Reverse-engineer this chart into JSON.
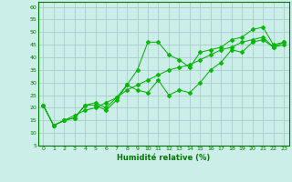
{
  "xlabel": "Humidité relative (%)",
  "background_color": "#cceee8",
  "grid_color": "#aacccc",
  "line_color": "#00aa00",
  "marker_color": "#00bb00",
  "xlim": [
    -0.5,
    23.5
  ],
  "ylim": [
    5,
    62
  ],
  "yticks": [
    5,
    10,
    15,
    20,
    25,
    30,
    35,
    40,
    45,
    50,
    55,
    60
  ],
  "xticks": [
    0,
    1,
    2,
    3,
    4,
    5,
    6,
    7,
    8,
    9,
    10,
    11,
    12,
    13,
    14,
    15,
    16,
    17,
    18,
    19,
    20,
    21,
    22,
    23
  ],
  "series1_x": [
    0,
    1,
    2,
    3,
    4,
    5,
    6,
    7,
    8,
    9,
    10,
    11,
    12,
    13,
    14,
    15,
    16,
    17,
    18,
    19,
    20,
    21,
    22,
    23
  ],
  "series1_y": [
    21,
    13,
    15,
    16,
    21,
    22,
    20,
    24,
    29,
    35,
    46,
    46,
    41,
    39,
    36,
    42,
    43,
    44,
    47,
    48,
    51,
    52,
    45,
    46
  ],
  "series2_x": [
    0,
    1,
    2,
    3,
    4,
    5,
    6,
    7,
    8,
    9,
    10,
    11,
    12,
    13,
    14,
    15,
    16,
    17,
    18,
    19,
    20,
    21,
    22,
    23
  ],
  "series2_y": [
    21,
    13,
    15,
    16,
    21,
    21,
    19,
    23,
    29,
    27,
    26,
    31,
    25,
    27,
    26,
    30,
    35,
    38,
    43,
    42,
    46,
    47,
    44,
    45
  ],
  "series3_x": [
    0,
    1,
    2,
    3,
    4,
    5,
    6,
    7,
    8,
    9,
    10,
    11,
    12,
    13,
    14,
    15,
    16,
    17,
    18,
    19,
    20,
    21,
    22,
    23
  ],
  "series3_y": [
    21,
    13,
    15,
    17,
    19,
    20,
    22,
    24,
    27,
    29,
    31,
    33,
    35,
    36,
    37,
    39,
    41,
    43,
    44,
    46,
    47,
    48,
    44,
    46
  ],
  "xlabel_fontsize": 6,
  "tick_fontsize": 4.5
}
